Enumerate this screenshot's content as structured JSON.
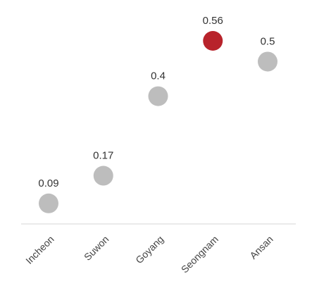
{
  "chart_data": {
    "type": "dot",
    "categories": [
      "Incheon",
      "Suwon",
      "Goyang",
      "Seongnam",
      "Ansan"
    ],
    "values": [
      0.09,
      0.17,
      0.4,
      0.56,
      0.5
    ],
    "colors": [
      "#bdbdbd",
      "#bdbdbd",
      "#bdbdbd",
      "#b8232b",
      "#bdbdbd"
    ]
  }
}
